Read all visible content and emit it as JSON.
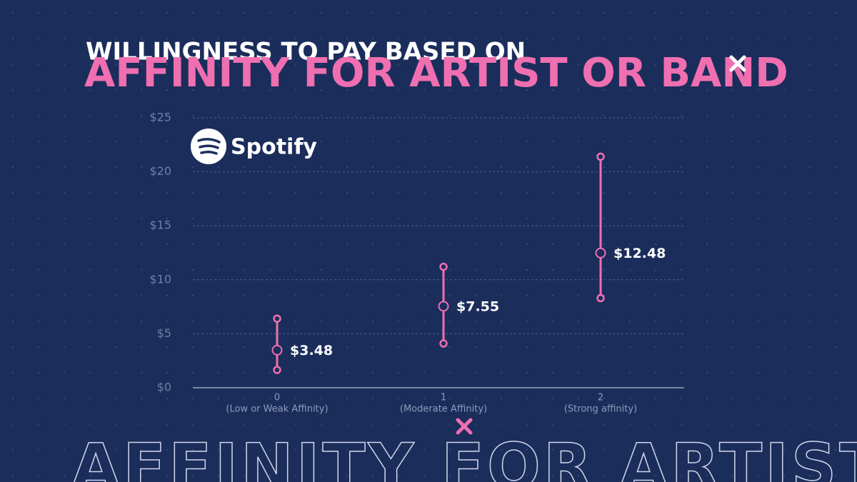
{
  "chart_data": {
    "type": "errorbar",
    "title": "WILLINGNESS TO PAY BASED ON",
    "subtitle": "AFFINITY FOR ARTIST OR BAND",
    "logo_text": "Spotify",
    "background_text": "AFFINITY FOR ARTIST OR",
    "categories": [
      "0",
      "1",
      "2"
    ],
    "category_descriptions": [
      "(Low or Weak Affinity)",
      "(Moderate Affinity)",
      "(Strong affinity)"
    ],
    "values": [
      3.48,
      7.55,
      12.48
    ],
    "value_labels": [
      "$3.48",
      "$7.55",
      "$12.48"
    ],
    "low": [
      1.65,
      4.1,
      8.3
    ],
    "high": [
      6.4,
      11.2,
      21.4
    ],
    "color": "#ef6fb0",
    "ylim": [
      0,
      25
    ],
    "yticks": [
      {
        "value": 0,
        "label": "$0"
      },
      {
        "value": 5,
        "label": "$5"
      },
      {
        "value": 10,
        "label": "$10"
      },
      {
        "value": 15,
        "label": "$15"
      },
      {
        "value": 20,
        "label": "$20"
      },
      {
        "value": 25,
        "label": "$25"
      }
    ],
    "grid": true
  }
}
